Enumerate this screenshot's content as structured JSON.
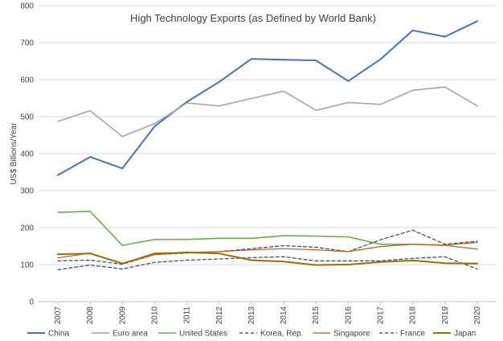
{
  "chart_data": {
    "type": "line",
    "title": "High Technology Exports (as Defined by World Bank)",
    "ylabel": "US$ Billions/Year",
    "xlabel": "",
    "ylim": [
      0,
      800
    ],
    "y_ticks": [
      0,
      100,
      200,
      300,
      400,
      500,
      600,
      700,
      800
    ],
    "grid": "horizontal",
    "legend_position": "bottom",
    "x": [
      "2007",
      "2008",
      "2009",
      "2010",
      "2011",
      "2012",
      "2013",
      "2014",
      "2015",
      "2016",
      "2017",
      "2018",
      "2019",
      "2020"
    ],
    "series": [
      {
        "name": "China",
        "color": "#4472C4",
        "dash": "solid",
        "width": 2,
        "values": [
          342,
          391,
          360,
          474,
          540,
          594,
          656,
          654,
          652,
          596,
          655,
          733,
          716,
          758
        ]
      },
      {
        "name": "Euro area",
        "color": "#A5A5A5",
        "dash": "solid",
        "width": 1.6,
        "values": [
          487,
          516,
          446,
          481,
          537,
          529,
          549,
          569,
          517,
          538,
          533,
          571,
          580,
          529
        ]
      },
      {
        "name": "United States",
        "color": "#70AD47",
        "dash": "solid",
        "width": 1.6,
        "values": [
          241,
          244,
          152,
          168,
          168,
          171,
          171,
          178,
          177,
          175,
          155,
          155,
          152,
          142
        ]
      },
      {
        "name": "Korea, Rep.",
        "color": "#264478",
        "dash": "dashed",
        "width": 1.2,
        "values": [
          110,
          112,
          101,
          127,
          131,
          135,
          143,
          151,
          147,
          135,
          167,
          193,
          155,
          163
        ]
      },
      {
        "name": "Singapore",
        "color": "#C55A11",
        "dash": "solid",
        "width": 1.2,
        "values": [
          118,
          131,
          103,
          131,
          133,
          135,
          140,
          143,
          140,
          135,
          149,
          155,
          153,
          160
        ]
      },
      {
        "name": "France",
        "color": "#264478",
        "dash": "dashed",
        "width": 1.2,
        "values": [
          86,
          99,
          88,
          106,
          112,
          115,
          119,
          121,
          110,
          110,
          110,
          117,
          121,
          88
        ]
      },
      {
        "name": "Japan",
        "color": "#9C7100",
        "dash": "solid",
        "width": 2,
        "values": [
          128,
          130,
          103,
          128,
          133,
          130,
          112,
          108,
          99,
          100,
          107,
          111,
          104,
          103
        ]
      }
    ]
  }
}
